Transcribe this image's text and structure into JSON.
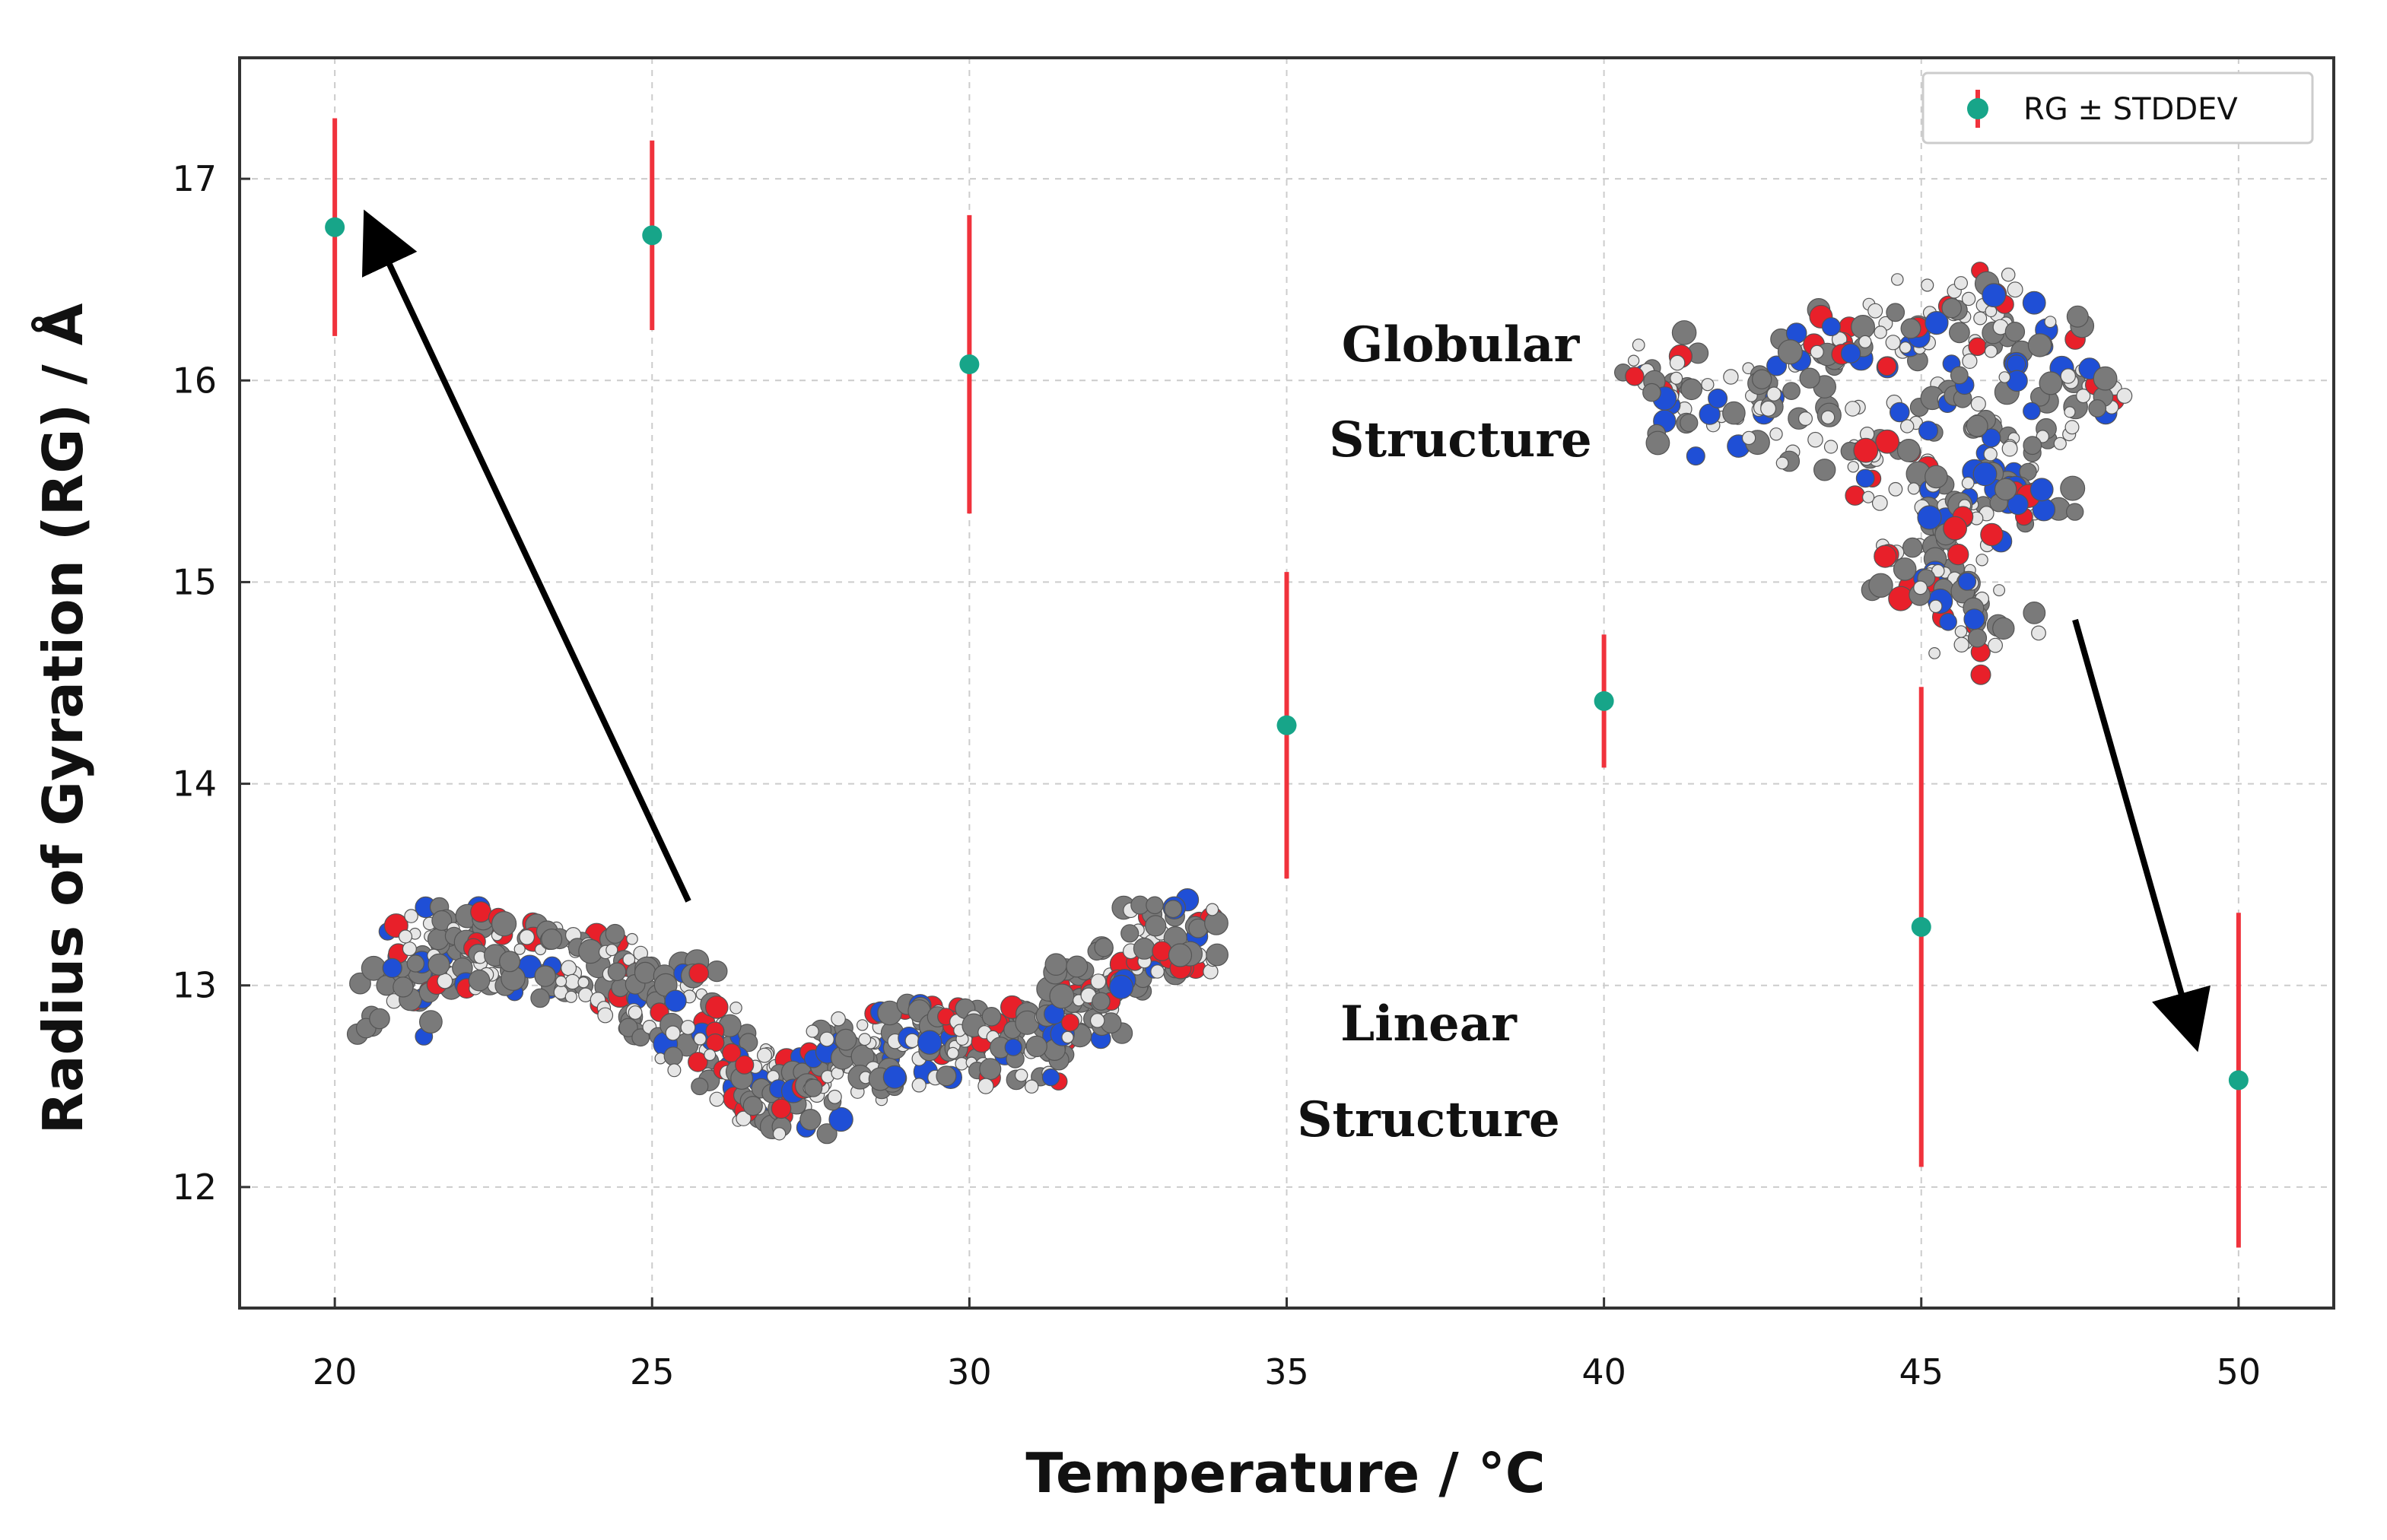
{
  "chart_data": {
    "type": "scatter",
    "title": "",
    "xlabel": "Temperature / °C",
    "ylabel": "Radius of Gyration (RG) / Å",
    "xlim": [
      18.5,
      51.5
    ],
    "ylim": [
      11.4,
      17.6
    ],
    "x_ticks": [
      20,
      25,
      30,
      35,
      40,
      45,
      50
    ],
    "y_ticks": [
      12,
      13,
      14,
      15,
      16,
      17
    ],
    "grid": true,
    "legend": {
      "position": "top-right",
      "entries": [
        "RG ± STDDEV"
      ]
    },
    "series": [
      {
        "name": "RG ± STDDEV",
        "x": [
          20,
          25,
          30,
          35,
          40,
          45,
          50
        ],
        "y": [
          16.76,
          16.72,
          16.08,
          14.29,
          14.41,
          13.29,
          12.53
        ],
        "error": [
          0.54,
          0.47,
          0.74,
          0.76,
          0.33,
          1.19,
          0.83
        ]
      }
    ],
    "annotations": [
      {
        "id": "globular",
        "lines": [
          "Globular",
          "Structure"
        ],
        "points_to": {
          "x": 50,
          "y": 12.53
        }
      },
      {
        "id": "linear",
        "lines": [
          "Linear",
          "Structure"
        ],
        "points_to": {
          "x": 20,
          "y": 16.76
        }
      }
    ]
  },
  "colors": {
    "marker": "#17a589",
    "errorbar": "#f0323c",
    "grid": "#cccccc",
    "axis": "#333333",
    "carbon": "#7a7a7a",
    "oxygen": "#e8202a",
    "nitrogen": "#1f4fd6",
    "hydrogen": "#e6e6e6"
  }
}
